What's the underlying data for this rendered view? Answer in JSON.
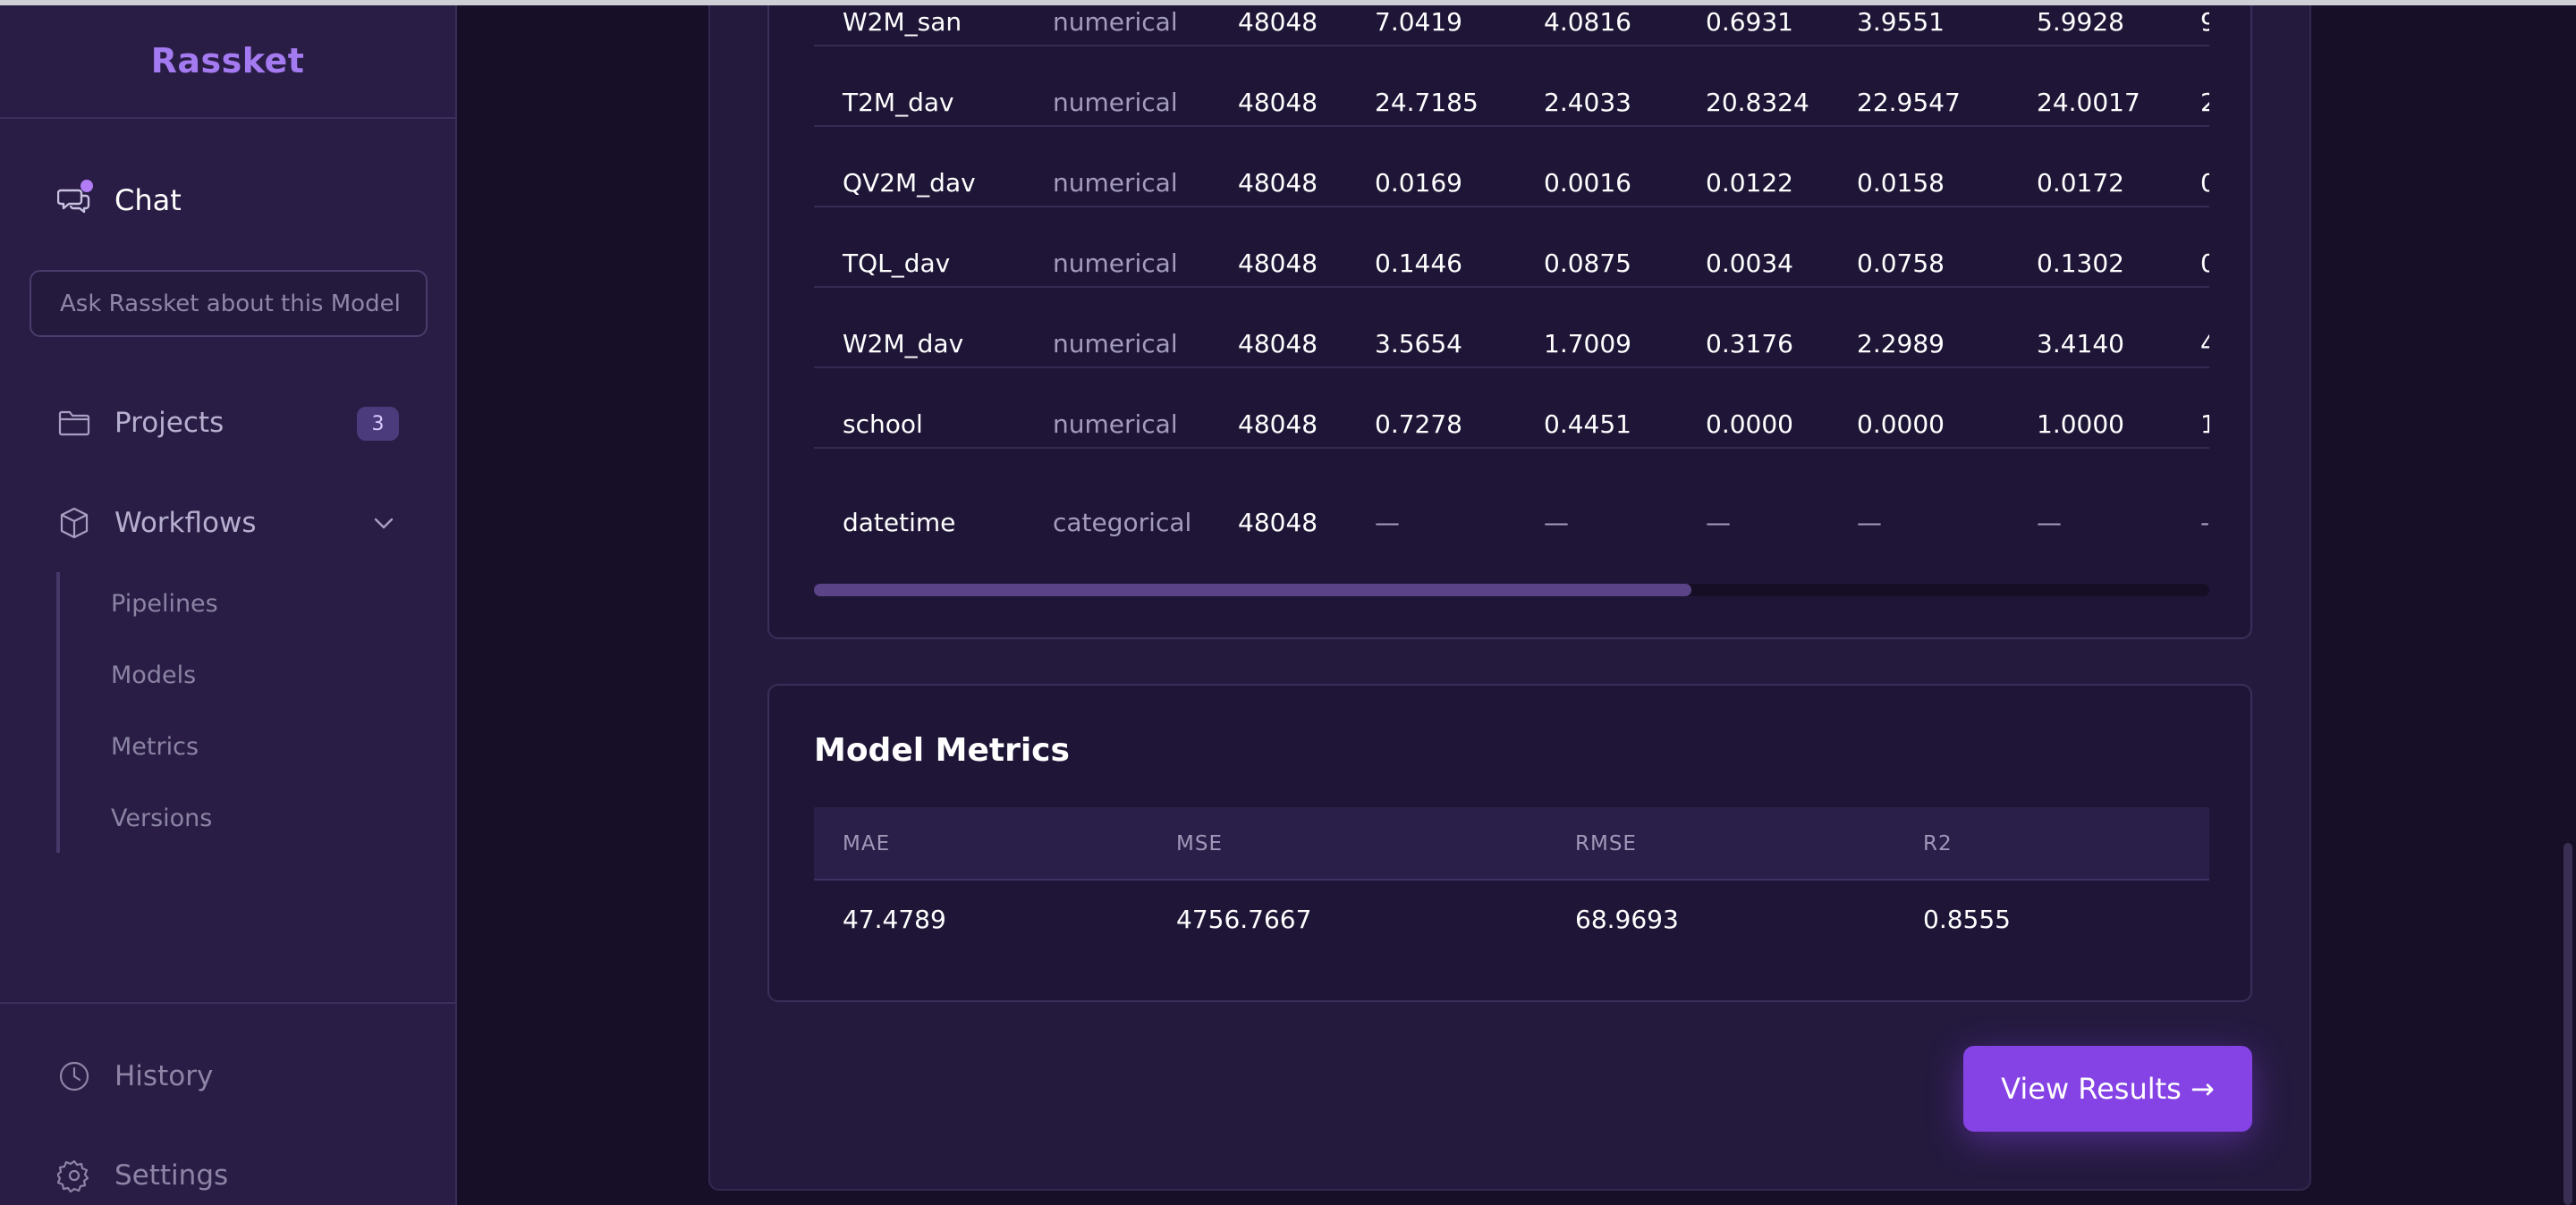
{
  "sidebar": {
    "brand": "Rassket",
    "chat_label": "Chat",
    "ask_placeholder": "Ask Rassket about this Model",
    "projects_label": "Projects",
    "projects_count": "3",
    "workflows_label": "Workflows",
    "workflows_items": [
      "Pipelines",
      "Models",
      "Metrics",
      "Versions"
    ],
    "history_label": "History",
    "settings_label": "Settings",
    "icons": {
      "chat": "chat-bubbles-icon",
      "projects": "folder-icon",
      "workflows": "cube-icon",
      "history": "clock-icon",
      "settings": "gear-icon"
    }
  },
  "stats_table": {
    "rows": [
      {
        "name": "W2M_san",
        "type": "numerical",
        "count": "48048",
        "c1": "7.0419",
        "c2": "4.0816",
        "c3": "0.6931",
        "c4": "3.9551",
        "c5": "5.9928",
        "c6": "9"
      },
      {
        "name": "T2M_dav",
        "type": "numerical",
        "count": "48048",
        "c1": "24.7185",
        "c2": "2.4033",
        "c3": "20.8324",
        "c4": "22.9547",
        "c5": "24.0017",
        "c6": "2"
      },
      {
        "name": "QV2M_dav",
        "type": "numerical",
        "count": "48048",
        "c1": "0.0169",
        "c2": "0.0016",
        "c3": "0.0122",
        "c4": "0.0158",
        "c5": "0.0172",
        "c6": "0"
      },
      {
        "name": "TQL_dav",
        "type": "numerical",
        "count": "48048",
        "c1": "0.1446",
        "c2": "0.0875",
        "c3": "0.0034",
        "c4": "0.0758",
        "c5": "0.1302",
        "c6": "0"
      },
      {
        "name": "W2M_dav",
        "type": "numerical",
        "count": "48048",
        "c1": "3.5654",
        "c2": "1.7009",
        "c3": "0.3176",
        "c4": "2.2989",
        "c5": "3.4140",
        "c6": "4"
      },
      {
        "name": "school",
        "type": "numerical",
        "count": "48048",
        "c1": "0.7278",
        "c2": "0.4451",
        "c3": "0.0000",
        "c4": "0.0000",
        "c5": "1.0000",
        "c6": "1"
      },
      {
        "name": "datetime",
        "type": "categorical",
        "count": "48048",
        "c1": "—",
        "c2": "—",
        "c3": "—",
        "c4": "—",
        "c5": "—",
        "c6": "-"
      }
    ]
  },
  "metrics": {
    "title": "Model Metrics",
    "headers": [
      "MAE",
      "MSE",
      "RMSE",
      "R2"
    ],
    "values": [
      "47.4789",
      "4756.7667",
      "68.9693",
      "0.8555"
    ]
  },
  "view_results_label": "View Results →",
  "colors": {
    "accent": "#8542e4",
    "brand": "#a47af0",
    "sidebar_bg": "#291d45",
    "page_bg": "#170f27"
  }
}
